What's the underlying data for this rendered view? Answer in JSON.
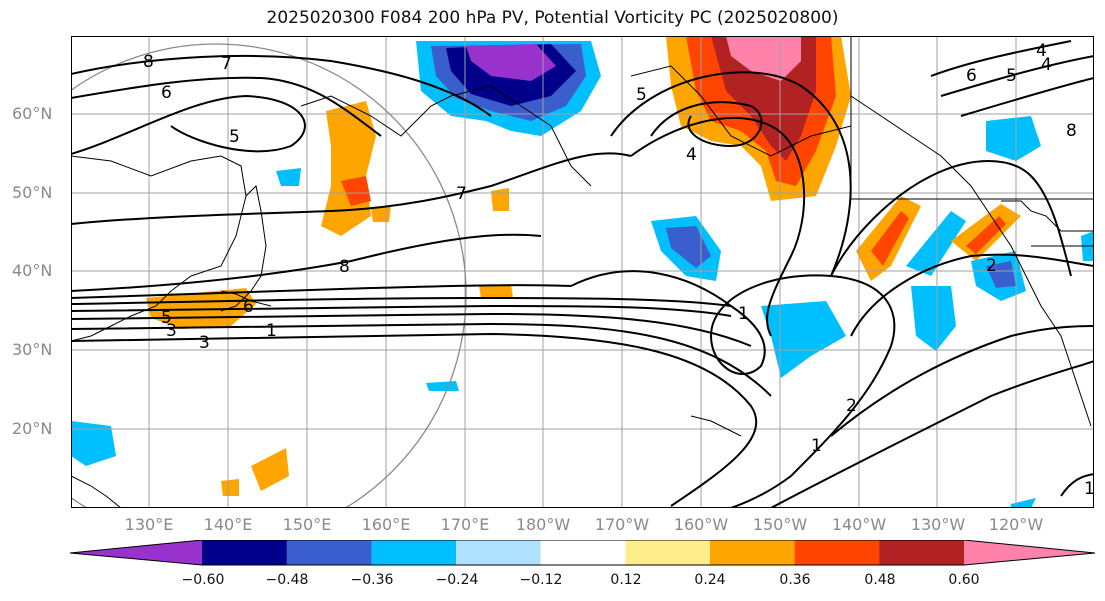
{
  "title": "2025020300 F084 200 hPa PV, Potential Vorticity PC (2025020800)",
  "lat_labels": [
    "60°N",
    "50°N",
    "40°N",
    "30°N",
    "20°N"
  ],
  "lon_labels": [
    "130°E",
    "140°E",
    "150°E",
    "160°E",
    "170°E",
    "180°W",
    "170°W",
    "160°W",
    "150°W",
    "140°W",
    "130°W",
    "120°W"
  ],
  "colorbar": {
    "ticks": [
      "−0.60",
      "−0.48",
      "−0.36",
      "−0.24",
      "−0.12",
      "0.12",
      "0.24",
      "0.36",
      "0.48",
      "0.60"
    ],
    "colors": [
      "#9932cc",
      "#00008b",
      "#3a5fcd",
      "#00bfff",
      "#b0e2ff",
      "#ffffff",
      "#ffec8b",
      "#ffa500",
      "#ff4500",
      "#b22222",
      "#ff82ab"
    ]
  },
  "contour_labels": [
    "8",
    "7",
    "6",
    "5",
    "4",
    "5",
    "4",
    "6",
    "5",
    "4",
    "8",
    "7",
    "2",
    "1",
    "2",
    "1",
    "6",
    "5",
    "3",
    "1",
    "1",
    "3",
    "8"
  ],
  "colors": {
    "map_border": "#000000",
    "grid": "#a0a0a0",
    "contour": "#000000",
    "coast": "#000000"
  }
}
